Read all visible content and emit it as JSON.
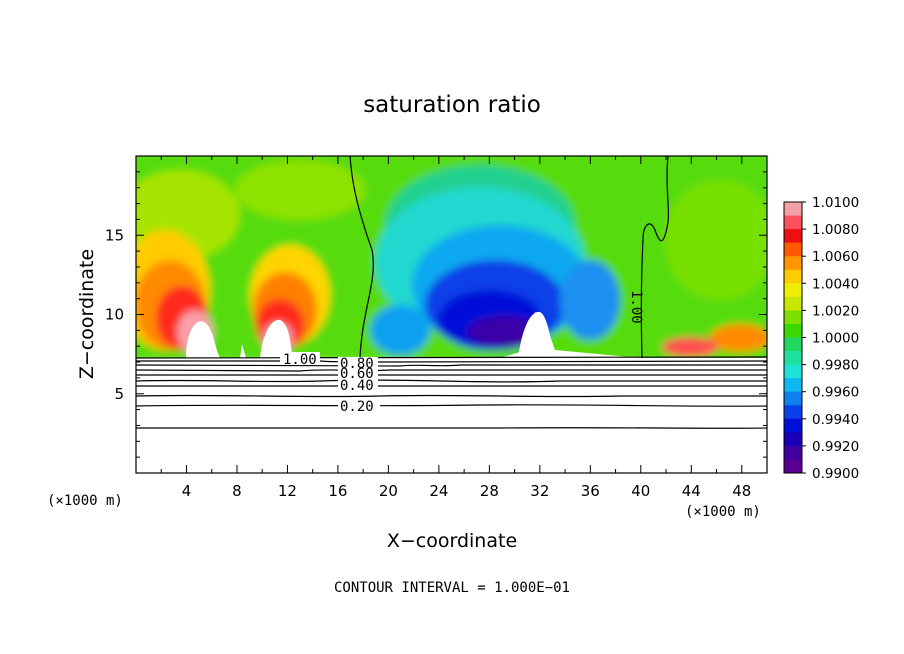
{
  "chart_data": {
    "type": "heatmap",
    "title": "saturation ratio",
    "xlabel": "X−coordinate",
    "ylabel": "Z−coordinate",
    "x_unit_left": "(×1000 m)",
    "x_unit_right": "(×1000 m)",
    "footer": "CONTOUR INTERVAL = 1.000E−01",
    "xlim": [
      0,
      50
    ],
    "ylim": [
      0,
      20
    ],
    "x_ticks": [
      "4",
      "8",
      "12",
      "16",
      "20",
      "24",
      "28",
      "32",
      "36",
      "40",
      "44",
      "48"
    ],
    "y_ticks": [
      "5",
      "10",
      "15"
    ],
    "colorbar": {
      "range": [
        0.99,
        1.01
      ],
      "labels": [
        "1.0100",
        "1.0080",
        "1.0060",
        "1.0040",
        "1.0020",
        "1.0000",
        "0.9980",
        "0.9960",
        "0.9940",
        "0.9920",
        "0.9900"
      ],
      "colors": [
        "#f4a0a8",
        "#ff5060",
        "#ee1010",
        "#ff5a00",
        "#ff9500",
        "#ffcc00",
        "#f0ee00",
        "#c8e800",
        "#7ee000",
        "#3ad800",
        "#20d860",
        "#20e0a0",
        "#20e0d8",
        "#10b8f0",
        "#1080f0",
        "#0a40e8",
        "#0010d8",
        "#1800b8",
        "#4000a0",
        "#5a0090"
      ]
    },
    "contour_labels": [
      "1.00",
      "0.80",
      "0.60",
      "0.40",
      "0.20",
      "1.00"
    ],
    "grid": false
  },
  "colors": {
    "frame": "#000000",
    "background": "#ffffff"
  }
}
